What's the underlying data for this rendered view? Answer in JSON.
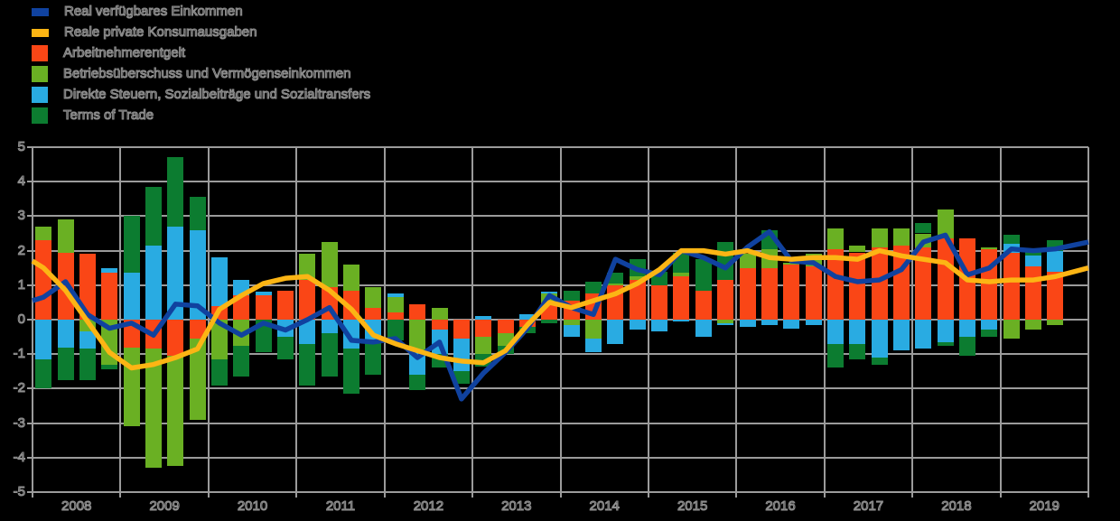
{
  "legend": {
    "items": [
      {
        "label": "Real verfügbares Einkommen",
        "series": "income",
        "swatch": "line"
      },
      {
        "label": "Reale private Konsumausgaben",
        "series": "consumption",
        "swatch": "line"
      },
      {
        "label": "Arbeitnehmerentgelt",
        "series": "ae",
        "swatch": "box"
      },
      {
        "label": "Betriebsüberschuss und Vermögenseinkommen",
        "series": "bu",
        "swatch": "box"
      },
      {
        "label": "Direkte Steuern, Sozialbeiträge und Sozialtransfers",
        "series": "st",
        "swatch": "box"
      },
      {
        "label": "Terms of Trade",
        "series": "tot",
        "swatch": "box"
      }
    ]
  },
  "colors": {
    "income": "#10429f",
    "consumption": "#fcb514",
    "ae": "#fa4616",
    "bu": "#6ab023",
    "st": "#29abe2",
    "tot": "#0c7c30",
    "grid": "#9b9b9b",
    "background": "#000000"
  },
  "y_axis": {
    "ticks": [
      "5",
      "4",
      "3",
      "2",
      "1",
      "0",
      "-1",
      "-2",
      "-3",
      "-4",
      "-5"
    ],
    "max": 5,
    "min": -5
  },
  "x_axis": {
    "years": [
      "2008",
      "2009",
      "2010",
      "2011",
      "2012",
      "2013",
      "2014",
      "2015",
      "2016",
      "2017",
      "2018",
      "2019"
    ]
  },
  "chart_data": {
    "type": "bar",
    "subtype": "stacked quarterly contribution bars with two line series, y in percent",
    "ylim": [
      -5,
      5
    ],
    "grid": true,
    "legend_position": "top-left",
    "categories": [
      "2008Q1",
      "2008Q2",
      "2008Q3",
      "2008Q4",
      "2009Q1",
      "2009Q2",
      "2009Q3",
      "2009Q4",
      "2010Q1",
      "2010Q2",
      "2010Q3",
      "2010Q4",
      "2011Q1",
      "2011Q2",
      "2011Q3",
      "2011Q4",
      "2012Q1",
      "2012Q2",
      "2012Q3",
      "2012Q4",
      "2013Q1",
      "2013Q2",
      "2013Q3",
      "2013Q4",
      "2014Q1",
      "2014Q2",
      "2014Q3",
      "2014Q4",
      "2015Q1",
      "2015Q2",
      "2015Q3",
      "2015Q4",
      "2016Q1",
      "2016Q2",
      "2016Q3",
      "2016Q4",
      "2017Q1",
      "2017Q2",
      "2017Q3",
      "2017Q4",
      "2018Q1",
      "2018Q2",
      "2018Q3",
      "2018Q4",
      "2019Q1",
      "2019Q2",
      "2019Q3"
    ],
    "series": [
      {
        "key": "ae",
        "name": "Arbeitnehmerentgelt",
        "values": [
          2.3,
          1.95,
          1.9,
          1.35,
          -0.8,
          -0.85,
          -1.05,
          -0.55,
          0.4,
          0.7,
          0.7,
          0.85,
          1.15,
          0.95,
          0.85,
          0.35,
          0.2,
          0.45,
          -0.3,
          -0.55,
          -0.5,
          -0.4,
          -0.2,
          0.5,
          0.55,
          0.75,
          1.0,
          1.15,
          1.0,
          1.25,
          0.85,
          1.15,
          1.5,
          1.5,
          1.6,
          1.55,
          2.05,
          1.95,
          2.1,
          2.15,
          2.1,
          2.35,
          2.35,
          2.05,
          1.95,
          1.55,
          1.4
        ]
      },
      {
        "key": "bu",
        "name": "Betriebsüberschuss und Vermögenseinkommen",
        "values": [
          0.4,
          0.95,
          -0.35,
          -1.3,
          -2.3,
          -3.45,
          -3.2,
          -2.35,
          -1.15,
          -0.75,
          0.0,
          0.0,
          0.75,
          1.3,
          0.75,
          0.6,
          0.45,
          -0.9,
          0.35,
          0.0,
          -0.5,
          -0.35,
          0.0,
          0.25,
          -0.15,
          -0.55,
          0.05,
          0.1,
          0.0,
          0.1,
          0.0,
          -0.1,
          0.4,
          0.55,
          0.05,
          0.35,
          0.6,
          0.2,
          0.55,
          0.5,
          0.4,
          0.85,
          0.0,
          0.05,
          -0.55,
          -0.3,
          -0.15
        ]
      },
      {
        "key": "st",
        "name": "Direkte Steuern, Sozialbeiträge und Sozialtransfers",
        "values": [
          -1.15,
          -0.8,
          -0.5,
          0.15,
          1.35,
          2.15,
          2.7,
          2.6,
          1.4,
          0.45,
          0.1,
          -0.5,
          -0.7,
          -0.4,
          -0.85,
          -0.6,
          0.1,
          -0.7,
          -0.7,
          -0.95,
          0.1,
          0.0,
          0.15,
          0.05,
          -0.35,
          -0.4,
          -0.7,
          -0.3,
          -0.35,
          -0.05,
          -0.5,
          -0.05,
          -0.2,
          -0.15,
          -0.25,
          -0.15,
          -0.7,
          -0.7,
          -1.1,
          -0.9,
          -0.85,
          -0.65,
          -0.5,
          -0.3,
          0.25,
          0.3,
          0.6
        ]
      },
      {
        "key": "tot",
        "name": "Terms of Trade",
        "values": [
          -0.85,
          -0.95,
          -0.9,
          -0.15,
          1.65,
          1.7,
          2.0,
          0.95,
          -0.75,
          -0.9,
          -0.95,
          -0.65,
          -1.2,
          -1.25,
          -1.3,
          -1.0,
          -0.6,
          -0.45,
          -0.4,
          -0.35,
          -0.35,
          -0.25,
          -0.2,
          -0.1,
          0.3,
          0.35,
          0.3,
          0.5,
          0.4,
          0.6,
          0.9,
          1.1,
          0.0,
          0.55,
          0.0,
          0.0,
          -0.7,
          -0.45,
          -0.2,
          0.0,
          0.3,
          -0.1,
          -0.55,
          -0.2,
          0.25,
          0.2,
          0.3
        ]
      }
    ],
    "lines": [
      {
        "key": "income",
        "name": "Real verfügbares Einkommen",
        "start_edge": 0.55,
        "end_edge": 2.25,
        "values": [
          0.65,
          1.1,
          0.15,
          -0.25,
          -0.1,
          -0.45,
          0.45,
          0.4,
          -0.1,
          -0.45,
          -0.1,
          -0.3,
          0.0,
          0.35,
          -0.6,
          -0.65,
          -0.55,
          -1.1,
          -0.65,
          -2.3,
          -1.55,
          -0.95,
          -0.25,
          0.7,
          0.35,
          0.15,
          1.75,
          1.45,
          1.3,
          2.0,
          1.8,
          1.5,
          2.1,
          2.55,
          1.7,
          1.65,
          1.25,
          1.1,
          1.15,
          1.45,
          2.25,
          2.45,
          1.3,
          1.5,
          2.05,
          2.0,
          2.05
        ]
      },
      {
        "key": "consumption",
        "name": "Reale private Konsumausgaben",
        "start_edge": 1.7,
        "end_edge": 1.5,
        "values": [
          1.5,
          0.85,
          -0.05,
          -0.95,
          -1.4,
          -1.3,
          -1.1,
          -0.85,
          0.3,
          0.7,
          1.05,
          1.2,
          1.25,
          0.85,
          0.3,
          -0.45,
          -0.7,
          -0.9,
          -1.1,
          -1.2,
          -1.25,
          -0.9,
          -0.15,
          0.5,
          0.35,
          0.55,
          0.75,
          1.05,
          1.45,
          2.0,
          2.0,
          1.9,
          2.0,
          1.8,
          1.75,
          1.8,
          1.8,
          1.75,
          2.0,
          1.85,
          1.75,
          1.65,
          1.15,
          1.1,
          1.15,
          1.15,
          1.25
        ]
      }
    ]
  }
}
